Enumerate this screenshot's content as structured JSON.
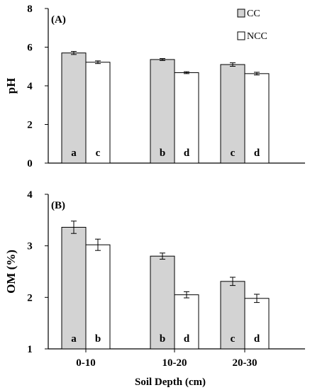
{
  "chart_data": [
    {
      "type": "bar",
      "panel_label": "(A)",
      "ylabel": "pH",
      "ylim": [
        0,
        8
      ],
      "yticks": [
        0,
        2,
        4,
        6,
        8
      ],
      "categories": [
        "0-10",
        "10-20",
        "20-30"
      ],
      "series": [
        {
          "name": "CC",
          "color": "#d3d3d3",
          "values": [
            5.7,
            5.36,
            5.1
          ],
          "errors": [
            0.08,
            0.05,
            0.09
          ],
          "letters": [
            "a",
            "b",
            "c"
          ]
        },
        {
          "name": "NCC",
          "color": "#ffffff",
          "values": [
            5.22,
            4.68,
            4.63
          ],
          "errors": [
            0.07,
            0.05,
            0.07
          ],
          "letters": [
            "c",
            "d",
            "d"
          ]
        }
      ],
      "legend": "top-right",
      "grid": false
    },
    {
      "type": "bar",
      "panel_label": "(B)",
      "ylabel": "OM (%)",
      "ylim": [
        1,
        4
      ],
      "yticks": [
        1,
        2,
        3,
        4
      ],
      "categories": [
        "0-10",
        "10-20",
        "20-30"
      ],
      "xlabel": "Soil Depth (cm)",
      "series": [
        {
          "name": "CC",
          "color": "#d3d3d3",
          "values": [
            3.36,
            2.8,
            2.31
          ],
          "errors": [
            0.12,
            0.06,
            0.08
          ],
          "letters": [
            "a",
            "b",
            "c"
          ]
        },
        {
          "name": "NCC",
          "color": "#ffffff",
          "values": [
            3.02,
            2.05,
            1.98
          ],
          "errors": [
            0.11,
            0.06,
            0.08
          ],
          "letters": [
            "b",
            "d",
            "d"
          ]
        }
      ],
      "grid": false
    }
  ]
}
